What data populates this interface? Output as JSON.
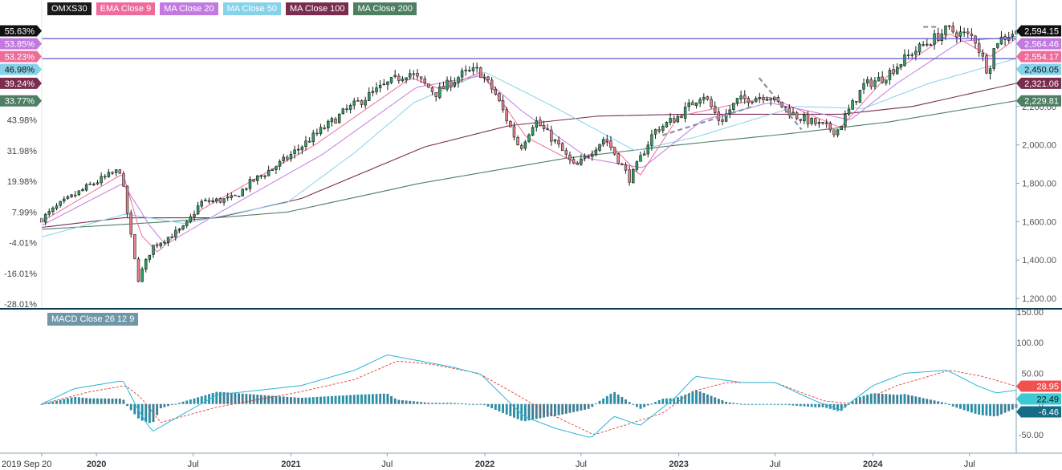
{
  "legend": {
    "items": [
      {
        "label": "OMXS30",
        "color": "#1a1a1a"
      },
      {
        "label": "EMA Close 9",
        "color": "#ee6c9a"
      },
      {
        "label": "MA Close 20",
        "color": "#c27ae0"
      },
      {
        "label": "MA Close 50",
        "color": "#86d2ea"
      },
      {
        "label": "MA Close 100",
        "color": "#7a2c4e"
      },
      {
        "label": "MA Close 200",
        "color": "#4e7f62"
      }
    ]
  },
  "macd_legend": {
    "label": "MACD Close 26 12 9"
  },
  "chart_data": [
    {
      "type": "candlestick",
      "name": "OMXS30",
      "x_labels": [
        "2019 Sep 20",
        "2020",
        "Jul",
        "2021",
        "Jul",
        "2022",
        "Jul",
        "2023",
        "Jul",
        "2024",
        "Jul"
      ],
      "x_label_dates": [
        "2019-09-20",
        "2020-01-01",
        "2020-07-01",
        "2021-01-01",
        "2021-07-01",
        "2022-01-01",
        "2022-07-01",
        "2023-01-01",
        "2023-07-01",
        "2024-01-01",
        "2024-07-01"
      ],
      "x_range": [
        "2019-09-20",
        "2024-09-27"
      ],
      "y_range": [
        1150,
        2680
      ],
      "y_ticks": [
        "1,200.00",
        "1,400.00",
        "1,600.00",
        "1,800.00",
        "2,000.00",
        "2,200.00",
        "2,400.00"
      ],
      "y_tick_values": [
        1200,
        1400,
        1600,
        1800,
        2000,
        2200,
        2400
      ],
      "percent_ticks": [
        "-28.01%",
        "-16.01%",
        "-4.01%",
        "7.99%",
        "19.98%",
        "31.98%",
        "43.98%"
      ],
      "percent_tick_values": [
        1170,
        1330,
        1490,
        1650,
        1810,
        1970,
        2130
      ],
      "percent_value_labels": [
        {
          "label": "55.63%",
          "value": 2594.15,
          "color": "#111111"
        },
        {
          "label": "53.85%",
          "value": 2564.46,
          "color": "#c27ae0"
        },
        {
          "label": "53.23%",
          "value": 2554.17,
          "color": "#ee6c9a"
        },
        {
          "label": "46.98%",
          "value": 2450.05,
          "color": "#86d2ea"
        },
        {
          "label": "39.24%",
          "value": 2321.06,
          "color": "#7a2c4e"
        },
        {
          "label": "33.77%",
          "value": 2229.81,
          "color": "#4e7f62"
        }
      ],
      "price_value_labels": [
        {
          "label": "2,594.15",
          "value": 2594.15,
          "color": "#111111"
        },
        {
          "label": "2,564.46",
          "value": 2564.46,
          "color": "#c27ae0"
        },
        {
          "label": "2,554.17",
          "value": 2554.17,
          "color": "#ee6c9a"
        },
        {
          "label": "2,450.05",
          "value": 2450.05,
          "color": "#86d2ea"
        },
        {
          "label": "2,321.06",
          "value": 2321.06,
          "color": "#7a2c4e"
        },
        {
          "label": "2,229.81",
          "value": 2229.81,
          "color": "#4e7f62"
        }
      ],
      "horizontal_lines": [
        2554,
        2450
      ],
      "close_anchors": [
        [
          "2019-09-20",
          1615
        ],
        [
          "2019-10-25",
          1690
        ],
        [
          "2019-12-20",
          1790
        ],
        [
          "2020-02-15",
          1870
        ],
        [
          "2020-03-13",
          1400
        ],
        [
          "2020-03-20",
          1300
        ],
        [
          "2020-04-15",
          1470
        ],
        [
          "2020-06-15",
          1570
        ],
        [
          "2020-07-15",
          1700
        ],
        [
          "2020-09-15",
          1720
        ],
        [
          "2020-10-15",
          1800
        ],
        [
          "2020-12-15",
          1910
        ],
        [
          "2021-02-15",
          2050
        ],
        [
          "2021-04-15",
          2180
        ],
        [
          "2021-06-15",
          2290
        ],
        [
          "2021-08-10",
          2380
        ],
        [
          "2021-10-01",
          2270
        ],
        [
          "2021-11-20",
          2370
        ],
        [
          "2021-12-20",
          2390
        ],
        [
          "2022-01-20",
          2270
        ],
        [
          "2022-03-08",
          1980
        ],
        [
          "2022-04-05",
          2130
        ],
        [
          "2022-05-15",
          2010
        ],
        [
          "2022-06-20",
          1880
        ],
        [
          "2022-08-15",
          2040
        ],
        [
          "2022-10-01",
          1820
        ],
        [
          "2022-11-15",
          2070
        ],
        [
          "2023-01-01",
          2150
        ],
        [
          "2023-02-15",
          2270
        ],
        [
          "2023-03-20",
          2120
        ],
        [
          "2023-04-20",
          2230
        ],
        [
          "2023-06-15",
          2260
        ],
        [
          "2023-08-10",
          2150
        ],
        [
          "2023-10-25",
          2070
        ],
        [
          "2023-12-15",
          2310
        ],
        [
          "2024-01-20",
          2350
        ],
        [
          "2024-03-15",
          2480
        ],
        [
          "2024-05-20",
          2600
        ],
        [
          "2024-07-10",
          2560
        ],
        [
          "2024-08-05",
          2380
        ],
        [
          "2024-08-20",
          2540
        ],
        [
          "2024-09-27",
          2594
        ]
      ],
      "indicators": {
        "ema9_anchors": [
          [
            "2019-09-20",
            1600
          ],
          [
            "2020-02-20",
            1850
          ],
          [
            "2020-03-25",
            1530
          ],
          [
            "2020-04-25",
            1440
          ],
          [
            "2020-07-15",
            1660
          ],
          [
            "2021-02-15",
            2000
          ],
          [
            "2021-08-15",
            2350
          ],
          [
            "2021-10-10",
            2290
          ],
          [
            "2021-12-25",
            2380
          ],
          [
            "2022-03-20",
            2040
          ],
          [
            "2022-06-25",
            1900
          ],
          [
            "2022-08-20",
            2020
          ],
          [
            "2022-10-20",
            1840
          ],
          [
            "2023-01-01",
            2150
          ],
          [
            "2023-06-20",
            2250
          ],
          [
            "2023-11-01",
            2090
          ],
          [
            "2024-01-25",
            2350
          ],
          [
            "2024-05-25",
            2580
          ],
          [
            "2024-08-10",
            2460
          ],
          [
            "2024-09-27",
            2554
          ]
        ],
        "ma20_anchors": [
          [
            "2019-09-20",
            1580
          ],
          [
            "2020-02-20",
            1800
          ],
          [
            "2020-04-10",
            1580
          ],
          [
            "2020-05-10",
            1480
          ],
          [
            "2020-08-15",
            1640
          ],
          [
            "2021-03-01",
            1950
          ],
          [
            "2021-08-25",
            2300
          ],
          [
            "2021-12-25",
            2360
          ],
          [
            "2022-03-10",
            2180
          ],
          [
            "2022-07-15",
            1930
          ],
          [
            "2022-10-25",
            1880
          ],
          [
            "2023-02-15",
            2130
          ],
          [
            "2023-06-20",
            2220
          ],
          [
            "2023-11-20",
            2130
          ],
          [
            "2024-02-15",
            2320
          ],
          [
            "2024-06-15",
            2540
          ],
          [
            "2024-09-27",
            2564
          ]
        ],
        "ma50_anchors": [
          [
            "2019-09-20",
            1520
          ],
          [
            "2020-02-25",
            1640
          ],
          [
            "2020-06-15",
            1590
          ],
          [
            "2020-12-25",
            1700
          ],
          [
            "2021-05-01",
            1960
          ],
          [
            "2021-08-20",
            2220
          ],
          [
            "2022-01-01",
            2380
          ],
          [
            "2022-05-10",
            2200
          ],
          [
            "2022-10-10",
            1970
          ],
          [
            "2023-02-01",
            2040
          ],
          [
            "2023-08-10",
            2200
          ],
          [
            "2023-12-15",
            2190
          ],
          [
            "2024-04-15",
            2320
          ],
          [
            "2024-09-27",
            2450
          ]
        ],
        "ma100_anchors": [
          [
            "2019-09-20",
            1570
          ],
          [
            "2020-02-20",
            1620
          ],
          [
            "2020-08-15",
            1620
          ],
          [
            "2021-01-20",
            1720
          ],
          [
            "2021-09-10",
            1990
          ],
          [
            "2022-02-15",
            2100
          ],
          [
            "2022-08-01",
            2150
          ],
          [
            "2023-01-15",
            2160
          ],
          [
            "2023-11-01",
            2160
          ],
          [
            "2024-03-15",
            2200
          ],
          [
            "2024-09-27",
            2321
          ]
        ],
        "ma200_anchors": [
          [
            "2019-09-20",
            1560
          ],
          [
            "2020-05-15",
            1600
          ],
          [
            "2020-12-25",
            1650
          ],
          [
            "2021-09-01",
            1800
          ],
          [
            "2022-06-01",
            1930
          ],
          [
            "2023-01-01",
            2000
          ],
          [
            "2023-08-01",
            2060
          ],
          [
            "2024-02-01",
            2120
          ],
          [
            "2024-09-27",
            2230
          ]
        ]
      },
      "dashed_segments": [
        [
          [
            "2022-12-01",
            2050
          ],
          [
            "2023-05-20",
            2200
          ]
        ],
        [
          [
            "2023-06-01",
            2350
          ],
          [
            "2023-08-20",
            2080
          ]
        ],
        [
          [
            "2024-04-05",
            2615
          ],
          [
            "2024-05-01",
            2615
          ]
        ]
      ]
    },
    {
      "type": "macd",
      "name": "MACD Close 26 12 9",
      "y_range": [
        -80,
        155
      ],
      "y_ticks": [
        "150.00",
        "100.00",
        "50.00",
        "0",
        "-50.00"
      ],
      "y_tick_values": [
        150,
        100,
        50,
        0,
        -50
      ],
      "value_labels": [
        {
          "label": "28.95",
          "value": 28.95,
          "color": "#ef5350"
        },
        {
          "label": "22.49",
          "value": 22.49,
          "color": "#3cc9d2"
        },
        {
          "label": "-6.46",
          "value": -6.46,
          "color": "#176b87"
        }
      ],
      "macd_anchors": [
        [
          "2019-09-20",
          0
        ],
        [
          "2019-11-20",
          25
        ],
        [
          "2020-02-20",
          38
        ],
        [
          "2020-03-20",
          -10
        ],
        [
          "2020-04-15",
          -45
        ],
        [
          "2020-05-15",
          -30
        ],
        [
          "2020-08-15",
          15
        ],
        [
          "2021-01-20",
          30
        ],
        [
          "2021-05-01",
          55
        ],
        [
          "2021-07-01",
          80
        ],
        [
          "2021-08-20",
          72
        ],
        [
          "2021-11-01",
          60
        ],
        [
          "2021-12-25",
          48
        ],
        [
          "2022-03-15",
          -20
        ],
        [
          "2022-05-15",
          -40
        ],
        [
          "2022-07-20",
          -55
        ],
        [
          "2022-09-01",
          -20
        ],
        [
          "2022-10-20",
          -35
        ],
        [
          "2022-12-25",
          10
        ],
        [
          "2023-02-01",
          45
        ],
        [
          "2023-05-01",
          35
        ],
        [
          "2023-07-01",
          35
        ],
        [
          "2023-09-15",
          5
        ],
        [
          "2023-11-01",
          -10
        ],
        [
          "2024-01-01",
          30
        ],
        [
          "2024-03-01",
          50
        ],
        [
          "2024-05-20",
          55
        ],
        [
          "2024-07-15",
          30
        ],
        [
          "2024-08-20",
          18
        ],
        [
          "2024-09-27",
          22.49
        ]
      ],
      "signal_anchors": [
        [
          "2019-09-20",
          0
        ],
        [
          "2019-12-20",
          20
        ],
        [
          "2020-02-25",
          30
        ],
        [
          "2020-03-25",
          10
        ],
        [
          "2020-05-01",
          -30
        ],
        [
          "2020-08-15",
          -5
        ],
        [
          "2021-01-20",
          20
        ],
        [
          "2021-05-01",
          40
        ],
        [
          "2021-07-20",
          70
        ],
        [
          "2021-09-20",
          65
        ],
        [
          "2021-12-20",
          50
        ],
        [
          "2022-02-20",
          20
        ],
        [
          "2022-05-01",
          -15
        ],
        [
          "2022-07-25",
          -50
        ],
        [
          "2022-09-20",
          -35
        ],
        [
          "2022-12-01",
          -15
        ],
        [
          "2023-01-25",
          20
        ],
        [
          "2023-04-01",
          35
        ],
        [
          "2023-07-01",
          35
        ],
        [
          "2023-10-01",
          5
        ],
        [
          "2023-12-01",
          0
        ],
        [
          "2024-02-15",
          30
        ],
        [
          "2024-05-25",
          55
        ],
        [
          "2024-07-25",
          45
        ],
        [
          "2024-09-27",
          28.95
        ]
      ]
    }
  ]
}
